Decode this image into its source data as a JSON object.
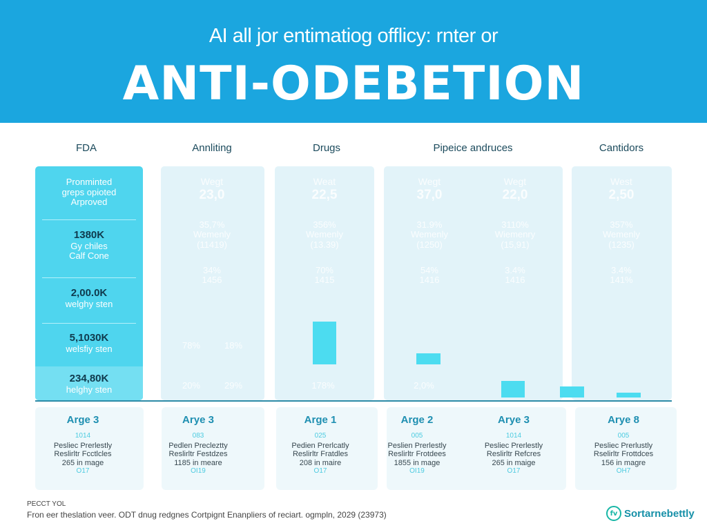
{
  "header": {
    "subtitle": "AI all jor entimatiog offlicy: rnter or",
    "title": "ANTI-ODEBETION",
    "bg": "#1ba6df"
  },
  "columns": [
    "FDA",
    "Annliting",
    "Drugs",
    "Pipeice andruces",
    "Cantidors"
  ],
  "fda": {
    "rows": [
      {
        "bold": "",
        "text": [
          "Pronminted",
          "greps opioted",
          "Arproved"
        ]
      },
      {
        "bold": "1380K",
        "text": [
          "Gy chiles",
          "Calf Cone"
        ]
      },
      {
        "bold": "2,00.0K",
        "text": [
          "welghy sten"
        ]
      },
      {
        "bold": "5,1030K",
        "text": [
          "welsfiy sten"
        ]
      },
      {
        "bold": "234,80K",
        "text": [
          "helghy sten"
        ]
      }
    ]
  },
  "subcols": [
    {
      "head": "Wegt",
      "value": "23,0",
      "pct": "35,7%",
      "label": "Wemenly",
      "paren": "(11419)",
      "p2": "34%",
      "n2": "1456",
      "r4a": "78%",
      "r4b": "18%",
      "r5a": "20%",
      "r5b": "29%"
    },
    {
      "head": "Weat",
      "value": "22,5",
      "pct": "356%",
      "label": "Wemenly",
      "paren": "(13.39)",
      "p2": "70%",
      "n2": "1415",
      "r5a": "178%"
    },
    {
      "head": "Wegt",
      "value": "37,0",
      "pct": "31.9%",
      "label": "Wemenly",
      "paren": "(1250)",
      "p2": "54%",
      "n2": "1416",
      "r5a": "2,0%"
    },
    {
      "head": "Wegt",
      "value": "22,0",
      "pct": "3110%",
      "label": "Wiemenry",
      "paren": "(15,91)",
      "p2": "3.4%",
      "n2": "1416"
    },
    {
      "head": "West",
      "value": "2,50",
      "pct": "357%",
      "label": "Wemenly",
      "paren": "(1235)",
      "p2": "3.4%",
      "n2": "141%"
    }
  ],
  "cards": [
    {
      "title": "Arge 3",
      "code": "1014",
      "l1": "Pesliec Prerlestly",
      "l2": "Reslirltr Fcctlcles",
      "l3": "265 in mage",
      "code2": "O17"
    },
    {
      "title": "Arye 3",
      "code": "083",
      "l1": "Pedlen Precleztty",
      "l2": "Reslirltr Festdzes",
      "l3": "1185 in meare",
      "code2": "OI19"
    },
    {
      "title": "Arge 1",
      "code": "025",
      "l1": "Pedien Prerlcatly",
      "l2": "Reslirltr Fratdles",
      "l3": "208 in maire",
      "code2": "O17"
    },
    {
      "title": "Arge 2",
      "code": "005",
      "l1": "Peslien Prerlestly",
      "l2": "Reslirltr Frotdees",
      "l3": "1855 in mage",
      "code2": "OI19"
    },
    {
      "title": "Arye 3",
      "code": "1014",
      "l1": "Pesliec Prerlestly",
      "l2": "Reslirltr Refcres",
      "l3": "265 in maige",
      "code2": "O17"
    },
    {
      "title": "Arye 8",
      "code": "005",
      "l1": "Pesliec Prerlustly",
      "l2": "Rselirltr Frottdces",
      "l3": "156 in magre",
      "code2": "OH7"
    }
  ],
  "footer": {
    "label": "PECCT YOL",
    "note": "Fron eer theslation veer. ODT dnug redgnes Cortpignt Enanpliers of reciart. ogmpln, 2029 (23973)"
  },
  "logo": {
    "mark": "fv",
    "text": "Sortarnebettly"
  }
}
